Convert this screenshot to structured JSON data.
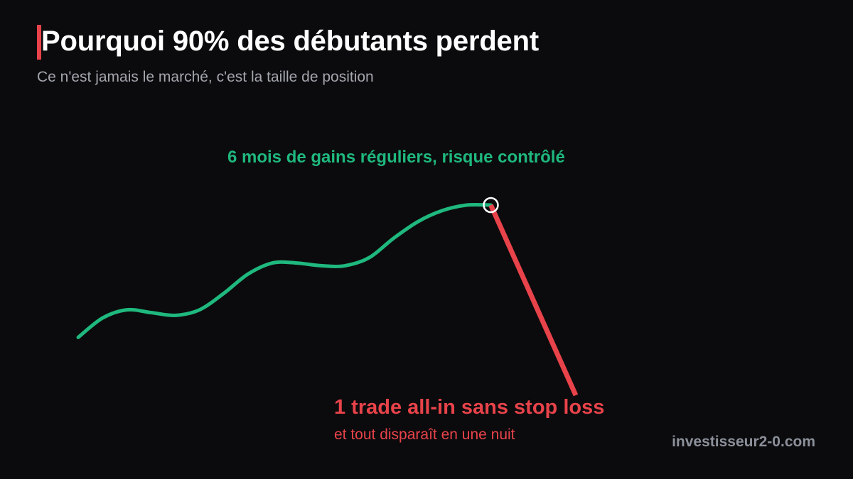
{
  "header": {
    "title": "Pourquoi 90% des débutants perdent",
    "subtitle": "Ce n'est jamais le marché, c'est la taille de position"
  },
  "colors": {
    "background": "#0b0b0d",
    "accent": "#e8434a",
    "gain": "#1fb87e",
    "loss": "#e8434a",
    "marker": "#ffffff"
  },
  "chart_data": {
    "type": "line",
    "title": "",
    "xlabel": "",
    "ylabel": "",
    "grid": false,
    "axes_visible": false,
    "series": [
      {
        "segment": "gain",
        "color": "#1fb87e",
        "x": [
          0,
          1,
          2,
          3,
          4,
          5,
          6,
          7,
          8,
          9,
          10,
          11,
          12,
          13,
          14,
          15,
          16,
          17
        ],
        "y": [
          21,
          28,
          31,
          30,
          29,
          31,
          37,
          44,
          48,
          48,
          47,
          47,
          50,
          57,
          63,
          67,
          69,
          69
        ]
      },
      {
        "segment": "loss",
        "color": "#e8434a",
        "x": [
          17,
          20.5
        ],
        "y": [
          69,
          0
        ]
      }
    ],
    "highlight_point": {
      "x": 17,
      "y": 69
    },
    "annotations": {
      "gain": "6 mois de gains réguliers, risque contrôlé",
      "loss": "1 trade all-in sans stop loss",
      "loss_sub": "et tout disparaît en une nuit"
    },
    "xlim": [
      0,
      20.5
    ],
    "ylim": [
      0,
      69
    ]
  },
  "footer": {
    "watermark": "investisseur2-0.com"
  }
}
